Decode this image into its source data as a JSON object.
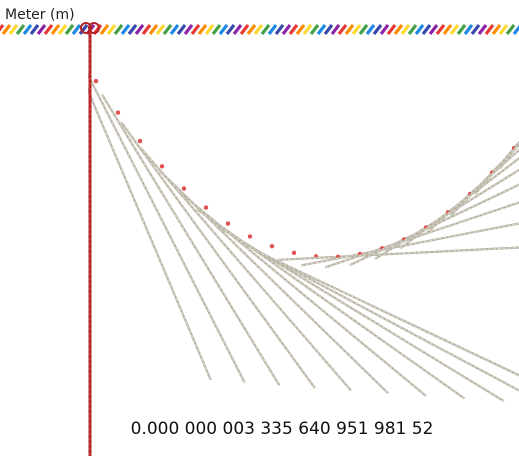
{
  "label": "Meter (m)",
  "value_text": "0.000 000 003 335 640 951 981 52"
}
